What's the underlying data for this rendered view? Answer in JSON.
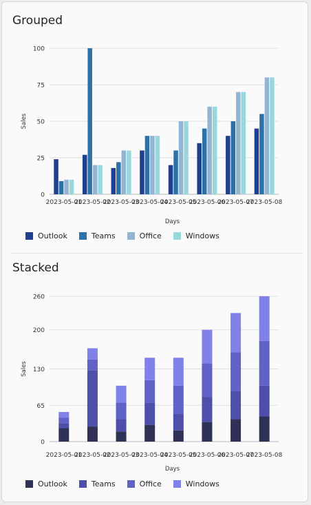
{
  "charts": [
    {
      "title": "Grouped",
      "chart_data": {
        "type": "bar",
        "mode": "grouped",
        "categories": [
          "2023-05-01",
          "2023-05-02",
          "2023-05-03",
          "2023-05-04",
          "2023-05-05",
          "2023-05-06",
          "2023-05-07",
          "2023-05-08"
        ],
        "series": [
          {
            "name": "Outlook",
            "color": "#1f3f8f",
            "values": [
              24,
              27,
              18,
              30,
              20,
              35,
              40,
              45
            ]
          },
          {
            "name": "Teams",
            "color": "#2c72a8",
            "values": [
              9,
              100,
              22,
              40,
              30,
              45,
              50,
              55
            ]
          },
          {
            "name": "Office",
            "color": "#92b5d3",
            "values": [
              10,
              20,
              30,
              40,
              50,
              60,
              70,
              80
            ]
          },
          {
            "name": "Windows",
            "color": "#98d7dc",
            "values": [
              10,
              20,
              30,
              40,
              50,
              60,
              70,
              80
            ]
          }
        ],
        "yticks": [
          "0",
          "25",
          "50",
          "75",
          "100"
        ],
        "ylim": [
          0,
          100
        ],
        "xlabel": "Days",
        "ylabel": "Sales",
        "grid": true,
        "legend": "bottom-left"
      }
    },
    {
      "title": "Stacked",
      "chart_data": {
        "type": "bar",
        "mode": "stacked",
        "categories": [
          "2023-05-01",
          "2023-05-02",
          "2023-05-03",
          "2023-05-04",
          "2023-05-05",
          "2023-05-06",
          "2023-05-07",
          "2023-05-08"
        ],
        "series": [
          {
            "name": "Outlook",
            "color": "#2f3256",
            "values": [
              24,
              27,
              18,
              30,
              20,
              35,
              40,
              45
            ]
          },
          {
            "name": "Teams",
            "color": "#4e4fab",
            "values": [
              9,
              100,
              22,
              40,
              30,
              45,
              50,
              55
            ]
          },
          {
            "name": "Office",
            "color": "#6062c8",
            "values": [
              10,
              20,
              30,
              40,
              50,
              60,
              70,
              80
            ]
          },
          {
            "name": "Windows",
            "color": "#8082ea",
            "values": [
              10,
              20,
              30,
              40,
              50,
              60,
              70,
              80
            ]
          }
        ],
        "yticks": [
          "0",
          "65",
          "130",
          "200",
          "260"
        ],
        "ylim": [
          0,
          260
        ],
        "xlabel": "Days",
        "ylabel": "Sales",
        "grid": true,
        "legend": "bottom-left"
      }
    }
  ]
}
